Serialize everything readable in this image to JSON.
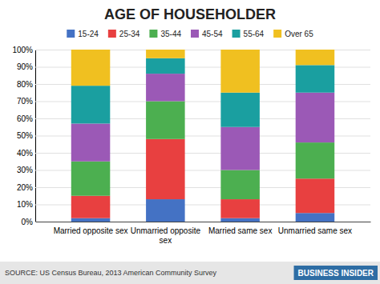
{
  "chart_data": {
    "type": "bar",
    "stacked": true,
    "title": "AGE OF HOUSEHOLDER",
    "categories": [
      "Married opposite sex",
      "Unmarried opposite\nsex",
      "Married same sex",
      "Unmarried same sex"
    ],
    "series": [
      {
        "name": "15-24",
        "color": "#4472c4",
        "values": [
          2,
          13,
          2,
          5
        ]
      },
      {
        "name": "25-34",
        "color": "#e84040",
        "values": [
          13,
          35,
          11,
          20
        ]
      },
      {
        "name": "35-44",
        "color": "#4caf50",
        "values": [
          20,
          22,
          17,
          21
        ]
      },
      {
        "name": "45-54",
        "color": "#9b59b6",
        "values": [
          22,
          16,
          25,
          29
        ]
      },
      {
        "name": "55-64",
        "color": "#1a9fa0",
        "values": [
          22,
          9,
          20,
          16
        ]
      },
      {
        "name": "Over 65",
        "color": "#f0c020",
        "values": [
          21,
          5,
          25,
          9
        ]
      }
    ],
    "ylim": [
      0,
      100
    ],
    "yticks": [
      {
        "value": 0,
        "label": "0%"
      },
      {
        "value": 10,
        "label": "10%"
      },
      {
        "value": 20,
        "label": "20%"
      },
      {
        "value": 30,
        "label": "30%"
      },
      {
        "value": 40,
        "label": "40%"
      },
      {
        "value": 50,
        "label": "50%"
      },
      {
        "value": 60,
        "label": "60%"
      },
      {
        "value": 70,
        "label": "70%"
      },
      {
        "value": 80,
        "label": "80%"
      },
      {
        "value": 90,
        "label": "90%"
      },
      {
        "value": 100,
        "label": "100%"
      }
    ],
    "grid": true,
    "legend": "top",
    "annotations": [
      "SOURCE:  US Census Bureau, 2013 American Community Survey",
      "BUSINESS INSIDER"
    ]
  }
}
